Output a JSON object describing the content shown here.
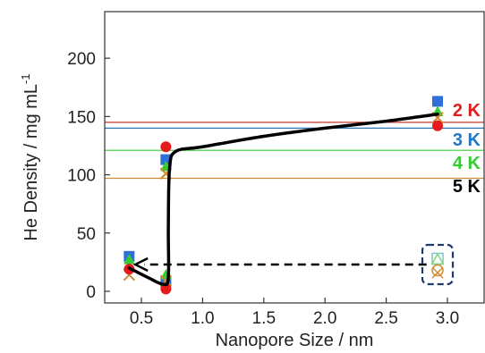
{
  "chart_data": {
    "type": "scatter",
    "title": "",
    "xlabel": "Nanopore Size / nm",
    "ylabel": "He Density / mg mL",
    "ylabel_superscript": "-1",
    "xlim": [
      0.2,
      3.3
    ],
    "ylim": [
      -10,
      240
    ],
    "xticks": [
      "0.5",
      "1.0",
      "1.5",
      "2.0",
      "2.5",
      "3.0"
    ],
    "yticks": [
      "0",
      "50",
      "100",
      "150",
      "200"
    ],
    "grid": false,
    "reference_lines": [
      {
        "label": "2 K",
        "y": 145,
        "color": "#c0392b"
      },
      {
        "label": "3 K",
        "y": 140,
        "color": "#2e75b6"
      },
      {
        "label": "4 K",
        "y": 121,
        "color": "#33cc33"
      },
      {
        "label": "5 K",
        "y": 97,
        "color": "#d08a30"
      }
    ],
    "temp_label_colors": [
      "#e41a1c",
      "#1f78c8",
      "#33cc33",
      "#000000"
    ],
    "series": [
      {
        "marker": "square",
        "color": "#2e6fd8",
        "points": [
          [
            0.4,
            30
          ],
          [
            0.7,
            113
          ],
          [
            0.7,
            8
          ],
          [
            2.92,
            163
          ]
        ]
      },
      {
        "marker": "triangle",
        "color": "#33cc33",
        "points": [
          [
            0.4,
            27
          ],
          [
            0.7,
            107
          ],
          [
            0.7,
            14
          ],
          [
            2.92,
            154
          ]
        ]
      },
      {
        "marker": "cross",
        "color": "#d08a30",
        "points": [
          [
            0.4,
            14
          ],
          [
            0.7,
            101
          ],
          [
            0.7,
            9
          ],
          [
            2.92,
            149
          ]
        ]
      },
      {
        "marker": "circle",
        "color": "#e41a1c",
        "points": [
          [
            0.4,
            19
          ],
          [
            0.7,
            124
          ],
          [
            0.7,
            2
          ],
          [
            2.92,
            142
          ]
        ]
      }
    ],
    "trend_curve": [
      [
        0.4,
        20
      ],
      [
        0.55,
        12
      ],
      [
        0.68,
        6
      ],
      [
        0.72,
        12
      ],
      [
        0.72,
        55
      ],
      [
        0.73,
        105
      ],
      [
        0.78,
        120
      ],
      [
        1.0,
        124
      ],
      [
        1.5,
        133
      ],
      [
        2.0,
        140
      ],
      [
        2.5,
        146
      ],
      [
        2.92,
        152
      ]
    ],
    "annotation": {
      "arrow_from": [
        2.83,
        23
      ],
      "arrow_to": [
        0.45,
        23
      ],
      "highlight_box_center": [
        2.92,
        23
      ],
      "box_markers": [
        {
          "marker": "square",
          "color": "#7bc8c0",
          "y": 28
        },
        {
          "marker": "triangle",
          "color": "#7fd67f",
          "y": 27
        },
        {
          "marker": "circle",
          "color": "#d08a30",
          "y": 18
        },
        {
          "marker": "cross",
          "color": "#d08a30",
          "y": 16
        }
      ]
    }
  }
}
